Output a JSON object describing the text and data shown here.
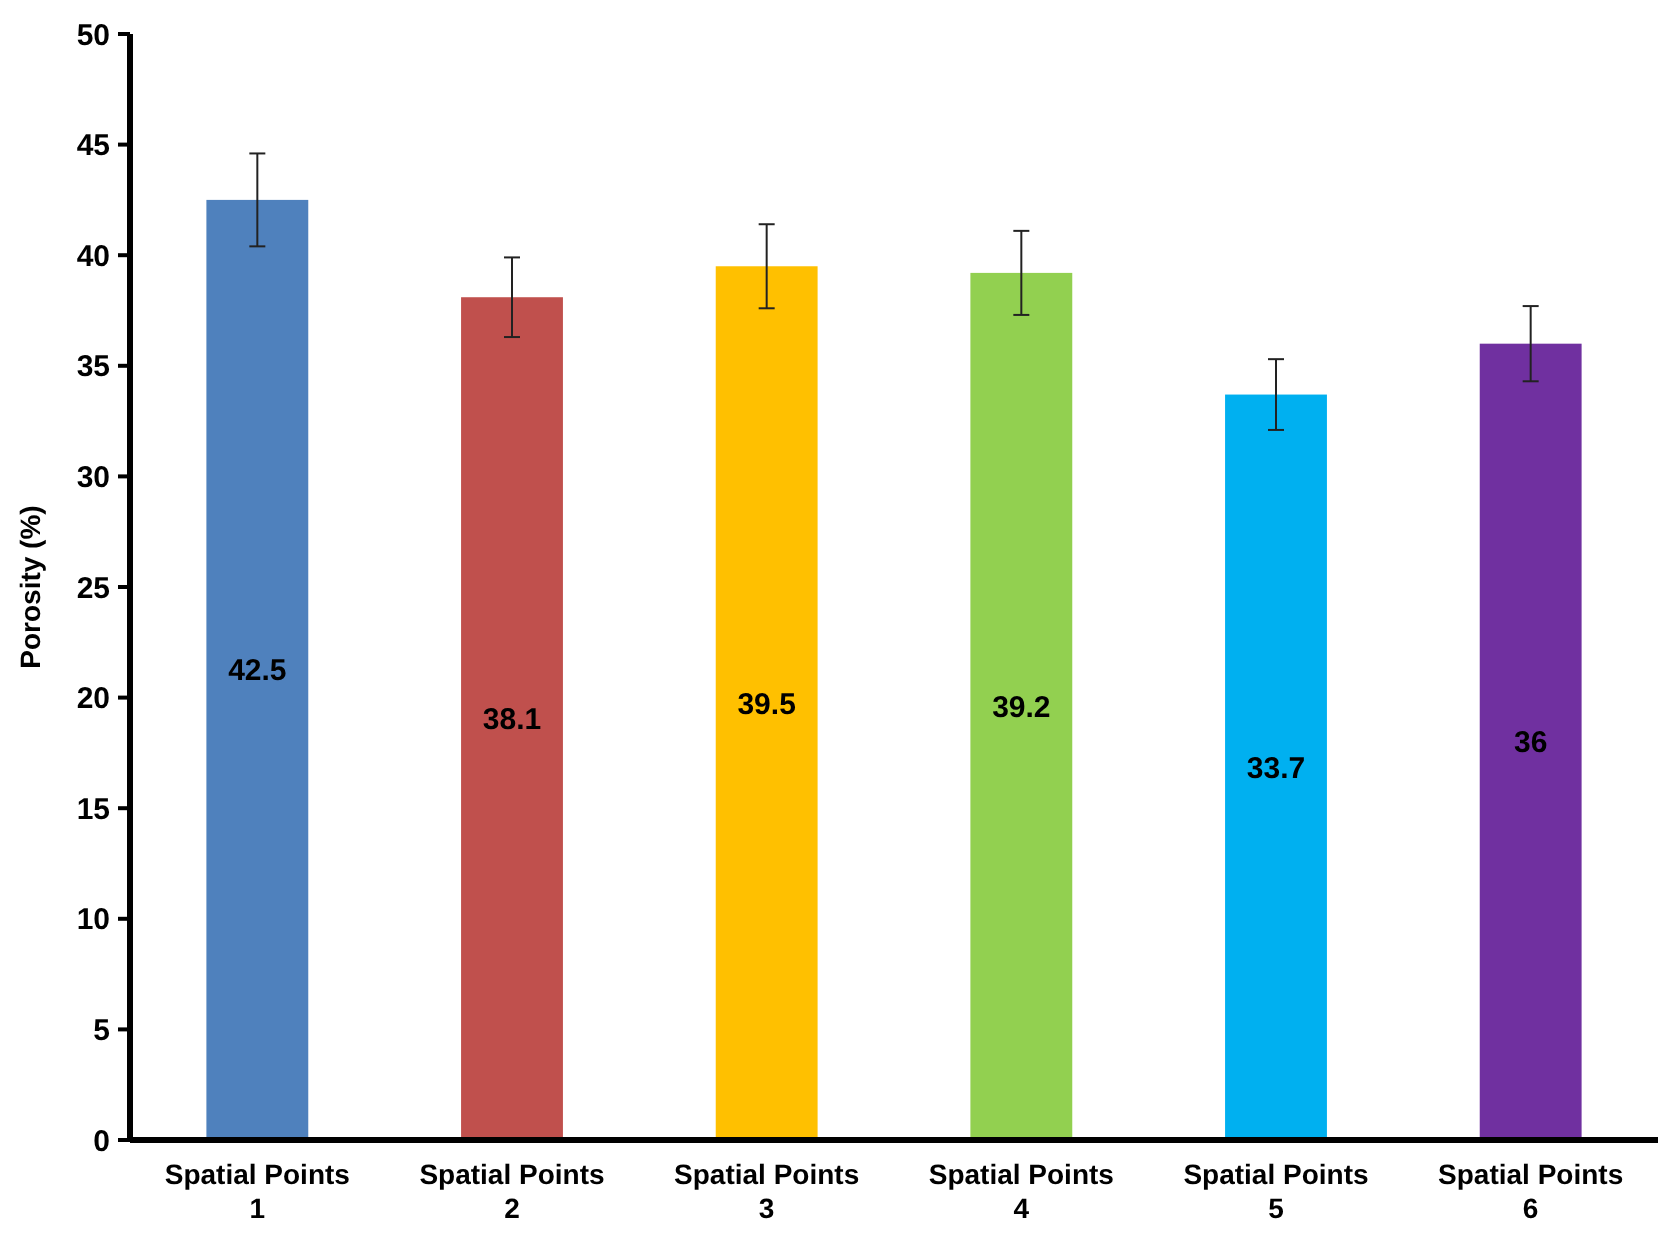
{
  "chart_data": {
    "type": "bar",
    "ylabel": "Porosity (%)",
    "categories": [
      "Spatial Points\n1",
      "Spatial Points\n2",
      "Spatial Points\n3",
      "Spatial Points\n4",
      "Spatial Points\n5",
      "Spatial Points\n6"
    ],
    "values": [
      42.5,
      38.1,
      39.5,
      39.2,
      33.7,
      36
    ],
    "colors": [
      "#4f81bd",
      "#c0504d",
      "#ffc000",
      "#92d050",
      "#00b0f0",
      "#7030a0"
    ],
    "errors": [
      2.1,
      1.8,
      1.9,
      1.9,
      1.6,
      1.7
    ],
    "ylim": [
      0,
      50
    ],
    "yticks": [
      0,
      5,
      10,
      15,
      20,
      25,
      30,
      35,
      40,
      45,
      50
    ],
    "data_labels": true
  }
}
